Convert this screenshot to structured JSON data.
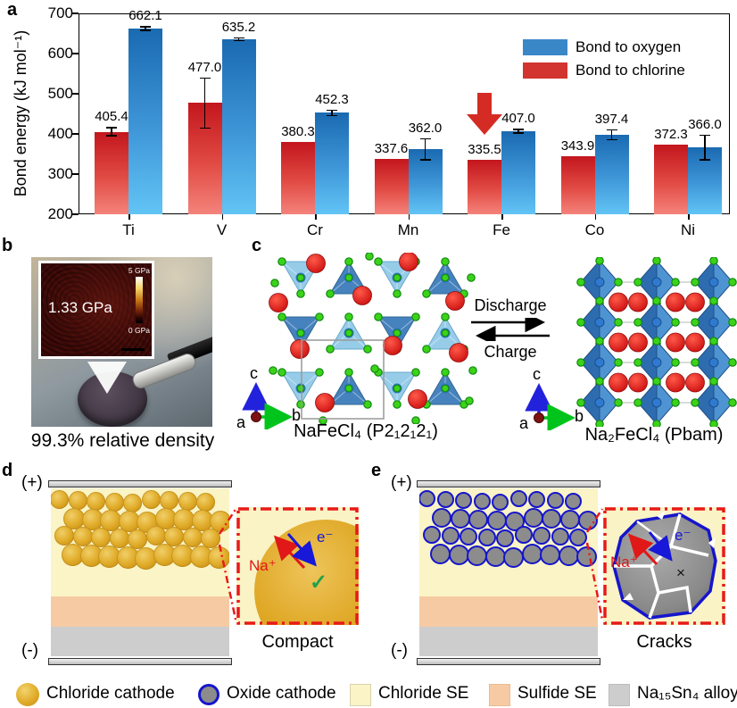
{
  "panels": {
    "a": "a",
    "b": "b",
    "c": "c",
    "d": "d",
    "e": "e"
  },
  "chart_data": {
    "type": "bar",
    "title": "",
    "xlabel": "",
    "ylabel": "Bond energy (kJ mol⁻¹)",
    "ylim": [
      200,
      700
    ],
    "yticks": [
      700,
      600,
      500,
      400,
      300,
      200
    ],
    "categories": [
      "Ti",
      "V",
      "Cr",
      "Mn",
      "Fe",
      "Co",
      "Ni"
    ],
    "series": [
      {
        "name": "Bond to chlorine",
        "values": [
          405.4,
          477.0,
          380.3,
          337.6,
          335.5,
          343.9,
          372.3
        ],
        "errors": [
          12,
          64,
          0,
          0,
          0,
          0,
          0
        ],
        "color_top": "#c3161d",
        "color_bottom": "#f4837b"
      },
      {
        "name": "Bond to oxygen",
        "values": [
          662.1,
          635.2,
          452.3,
          362.0,
          407.0,
          397.4,
          366.0
        ],
        "errors": [
          6,
          5,
          8,
          28,
          6,
          14,
          32
        ],
        "color_top": "#1a6ab1",
        "color_bottom": "#62c4f5"
      }
    ],
    "legend": [
      {
        "label": "Bond to oxygen",
        "color": "#3a87c8"
      },
      {
        "label": "Bond to chlorine",
        "color": "#d23430"
      }
    ],
    "legend_position": "top-right",
    "grid": false,
    "annotation": {
      "type": "down-arrow",
      "target_category": "Fe",
      "target_series": "Bond to chlorine",
      "color": "#d42c24"
    }
  },
  "panel_b": {
    "inset_value": "1.33 GPa",
    "scale_top": "5 GPa",
    "scale_bottom": "0 GPa",
    "caption": "99.3% relative density"
  },
  "panel_c": {
    "left_formula": "NaFeCl₄ (P2₁2₁2₁)",
    "right_formula": "Na₂FeCl₄ (Pbam)",
    "forward_label": "Discharge",
    "backward_label": "Charge",
    "axes": {
      "up": "c",
      "right": "b",
      "origin": "a"
    }
  },
  "panel_d": {
    "plus": "(+)",
    "minus": "(-)",
    "ion": "Na⁺",
    "electron": "e⁻",
    "check": "✓",
    "caption": "Compact"
  },
  "panel_e": {
    "plus": "(+)",
    "minus": "(-)",
    "ion": "Na⁺",
    "electron": "e⁻",
    "cross": "×",
    "caption": "Cracks"
  },
  "legend": {
    "items": [
      {
        "label": "Chloride cathode",
        "swatch": "gold-circle",
        "color": "#e2af2e"
      },
      {
        "label": "Oxide cathode",
        "swatch": "oxide-circle",
        "color": "#8c8c8c",
        "border": "#1515cc"
      },
      {
        "label": "Chloride SE",
        "swatch": "square",
        "color": "#faf4c6"
      },
      {
        "label": "Sulfide SE",
        "swatch": "square",
        "color": "#f6cba4"
      },
      {
        "label": "Na₁₅Sn₄ alloy",
        "swatch": "square",
        "color": "#cdcdcd"
      }
    ]
  },
  "colors": {
    "accent_red": "#e81a1a",
    "chloride_se": "#faf4c6",
    "sulfide_se": "#f6cba4",
    "alloy_gray": "#cdcdcd",
    "oxide_border_blue": "#1515cc",
    "crystal_green": "#3bd318",
    "crystal_red": "#e01818",
    "poly_blue_dark": "#2e6cb0",
    "poly_blue_light": "#92cae8"
  }
}
